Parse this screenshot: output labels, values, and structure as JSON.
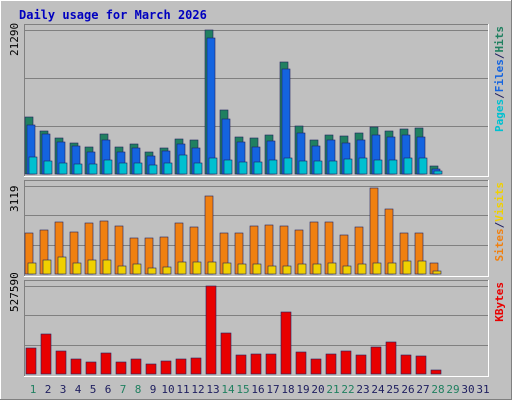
{
  "chart_data": [
    {
      "type": "bar",
      "panel": "hits",
      "title": "Daily usage for March 2026",
      "ymax_label": "21290",
      "ylim": [
        0,
        21290
      ],
      "grid": true,
      "legend": {
        "placement": "right",
        "parts": [
          {
            "text": "Pages",
            "color": "#00C0D0"
          },
          {
            "text": "/",
            "color": "#202060"
          },
          {
            "text": "Files",
            "color": "#1464E0"
          },
          {
            "text": "/",
            "color": "#202060"
          },
          {
            "text": "Hits",
            "color": "#208060"
          }
        ]
      },
      "categories": [
        "1",
        "2",
        "3",
        "4",
        "5",
        "6",
        "7",
        "8",
        "9",
        "10",
        "11",
        "12",
        "13",
        "14",
        "15",
        "16",
        "17",
        "18",
        "19",
        "20",
        "21",
        "22",
        "23",
        "24",
        "25",
        "26",
        "27",
        "28",
        "29",
        "30",
        "31"
      ],
      "series": [
        {
          "name": "Hits",
          "color": "#208060",
          "values": [
            8400,
            6300,
            5300,
            4600,
            4000,
            5900,
            4000,
            4400,
            3200,
            3900,
            5200,
            5000,
            21290,
            9400,
            5400,
            5300,
            5700,
            16500,
            7100,
            5000,
            5700,
            5600,
            6000,
            7000,
            6300,
            6700,
            6800,
            1200,
            0,
            0,
            0
          ]
        },
        {
          "name": "Files",
          "color": "#1464E0",
          "values": [
            7300,
            5900,
            4800,
            4100,
            3200,
            5000,
            3200,
            3800,
            2600,
            3400,
            4500,
            3800,
            20100,
            8200,
            4700,
            4000,
            4900,
            15500,
            6000,
            4200,
            5000,
            4600,
            5000,
            5800,
            5400,
            5700,
            5400,
            800,
            0,
            0,
            0
          ]
        },
        {
          "name": "Pages",
          "color": "#00C0D0",
          "values": [
            2500,
            1900,
            1600,
            1500,
            1500,
            2000,
            1600,
            1600,
            1400,
            1700,
            2800,
            1700,
            2400,
            2000,
            1800,
            1800,
            2000,
            2300,
            1900,
            1900,
            1900,
            2200,
            2400,
            2100,
            2100,
            2400,
            2400,
            500,
            0,
            0,
            0
          ]
        }
      ]
    },
    {
      "type": "bar",
      "panel": "visits",
      "ymax_label": "3119",
      "ylim": [
        0,
        3119
      ],
      "grid": true,
      "legend": {
        "placement": "right",
        "parts": [
          {
            "text": "Sites",
            "color": "#F08010"
          },
          {
            "text": "/",
            "color": "#202060"
          },
          {
            "text": "Visits",
            "color": "#F0D000"
          }
        ]
      },
      "categories": [
        "1",
        "2",
        "3",
        "4",
        "5",
        "6",
        "7",
        "8",
        "9",
        "10",
        "11",
        "12",
        "13",
        "14",
        "15",
        "16",
        "17",
        "18",
        "19",
        "20",
        "21",
        "22",
        "23",
        "24",
        "25",
        "26",
        "27",
        "28",
        "29",
        "30",
        "31"
      ],
      "series": [
        {
          "name": "Sites",
          "color": "#F08010",
          "values": [
            1450,
            1550,
            1850,
            1500,
            1800,
            1870,
            1700,
            1270,
            1270,
            1300,
            1800,
            1670,
            2750,
            1470,
            1470,
            1700,
            1720,
            1700,
            1570,
            1850,
            1850,
            1400,
            1650,
            3050,
            2300,
            1450,
            1450,
            400,
            0,
            0,
            0
          ]
        },
        {
          "name": "Visits",
          "color": "#F0D000",
          "values": [
            380,
            500,
            600,
            380,
            480,
            500,
            300,
            350,
            200,
            250,
            420,
            420,
            430,
            400,
            350,
            350,
            300,
            300,
            350,
            350,
            400,
            300,
            350,
            400,
            400,
            450,
            450,
            120,
            0,
            0,
            0
          ]
        }
      ]
    },
    {
      "type": "bar",
      "panel": "kbytes",
      "ymax_label": "527590",
      "ylim": [
        0,
        527590
      ],
      "grid": true,
      "legend": {
        "placement": "right",
        "parts": [
          {
            "text": "KBytes",
            "color": "#E80000"
          }
        ]
      },
      "categories": [
        "1",
        "2",
        "3",
        "4",
        "5",
        "6",
        "7",
        "8",
        "9",
        "10",
        "11",
        "12",
        "13",
        "14",
        "15",
        "16",
        "17",
        "18",
        "19",
        "20",
        "21",
        "22",
        "23",
        "24",
        "25",
        "26",
        "27",
        "28",
        "29",
        "30",
        "31"
      ],
      "series": [
        {
          "name": "KBytes",
          "color": "#E80000",
          "values": [
            155000,
            240000,
            138000,
            90000,
            74000,
            127000,
            74000,
            90000,
            58000,
            80000,
            90000,
            98000,
            527590,
            247000,
            113000,
            120000,
            117000,
            370000,
            133000,
            87000,
            119000,
            140000,
            115000,
            163000,
            189000,
            113000,
            110000,
            25000,
            0,
            0,
            0
          ]
        }
      ]
    }
  ],
  "x_labels": [
    {
      "text": "1",
      "weekend": true
    },
    {
      "text": "2",
      "weekend": false
    },
    {
      "text": "3",
      "weekend": false
    },
    {
      "text": "4",
      "weekend": false
    },
    {
      "text": "5",
      "weekend": false
    },
    {
      "text": "6",
      "weekend": false
    },
    {
      "text": "7",
      "weekend": true
    },
    {
      "text": "8",
      "weekend": true
    },
    {
      "text": "9",
      "weekend": false
    },
    {
      "text": "10",
      "weekend": false
    },
    {
      "text": "11",
      "weekend": false
    },
    {
      "text": "12",
      "weekend": false
    },
    {
      "text": "13",
      "weekend": false
    },
    {
      "text": "14",
      "weekend": true
    },
    {
      "text": "15",
      "weekend": true
    },
    {
      "text": "16",
      "weekend": false
    },
    {
      "text": "17",
      "weekend": false
    },
    {
      "text": "18",
      "weekend": false
    },
    {
      "text": "19",
      "weekend": false
    },
    {
      "text": "20",
      "weekend": false
    },
    {
      "text": "21",
      "weekend": true
    },
    {
      "text": "22",
      "weekend": true
    },
    {
      "text": "23",
      "weekend": false
    },
    {
      "text": "24",
      "weekend": false
    },
    {
      "text": "25",
      "weekend": false
    },
    {
      "text": "26",
      "weekend": false
    },
    {
      "text": "27",
      "weekend": false
    },
    {
      "text": "28",
      "weekend": true
    },
    {
      "text": "29",
      "weekend": true
    },
    {
      "text": "30",
      "weekend": false
    },
    {
      "text": "31",
      "weekend": false
    }
  ],
  "colors": {
    "background": "#C0C0C0",
    "plot_background": "#C0C0C0",
    "grid": "#808080",
    "title": "#0000C0",
    "weekday_label": "#202060",
    "weekend_label": "#208060"
  }
}
